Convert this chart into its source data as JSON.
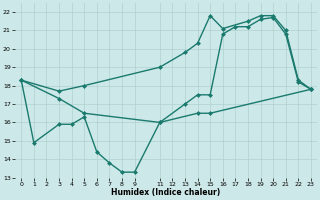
{
  "xlabel": "Humidex (Indice chaleur)",
  "xlim": [
    -0.5,
    23.5
  ],
  "ylim": [
    13,
    22.5
  ],
  "yticks": [
    13,
    14,
    15,
    16,
    17,
    18,
    19,
    20,
    21,
    22
  ],
  "xticks": [
    0,
    1,
    2,
    3,
    4,
    5,
    6,
    7,
    8,
    9,
    11,
    12,
    13,
    14,
    15,
    16,
    17,
    18,
    19,
    20,
    21,
    22,
    23
  ],
  "bg_color": "#cde8e8",
  "line_color": "#1a7a6e",
  "grid_color": "#b0d0d0",
  "curve1_x": [
    0,
    3,
    5,
    11,
    13,
    14,
    15,
    16,
    18,
    19,
    20,
    21,
    22,
    23
  ],
  "curve1_y": [
    18.3,
    17.7,
    18.0,
    19.0,
    19.8,
    20.3,
    21.8,
    21.1,
    21.5,
    21.8,
    21.8,
    21.0,
    18.3,
    17.8
  ],
  "curve2_x": [
    0,
    3,
    5,
    11,
    13,
    14,
    15,
    16,
    17,
    18,
    19,
    20,
    21,
    22,
    23
  ],
  "curve2_y": [
    18.3,
    17.3,
    16.5,
    16.0,
    17.0,
    17.5,
    17.5,
    20.8,
    21.2,
    21.2,
    21.6,
    21.7,
    20.8,
    18.2,
    17.8
  ],
  "curve3_x": [
    0,
    1,
    3,
    4,
    5,
    6,
    7,
    8,
    9,
    11,
    14,
    15,
    23
  ],
  "curve3_y": [
    18.3,
    14.9,
    15.9,
    15.9,
    16.3,
    14.4,
    13.8,
    13.3,
    13.3,
    16.0,
    16.5,
    16.5,
    17.8
  ],
  "lw": 1.0,
  "ms": 2.5
}
